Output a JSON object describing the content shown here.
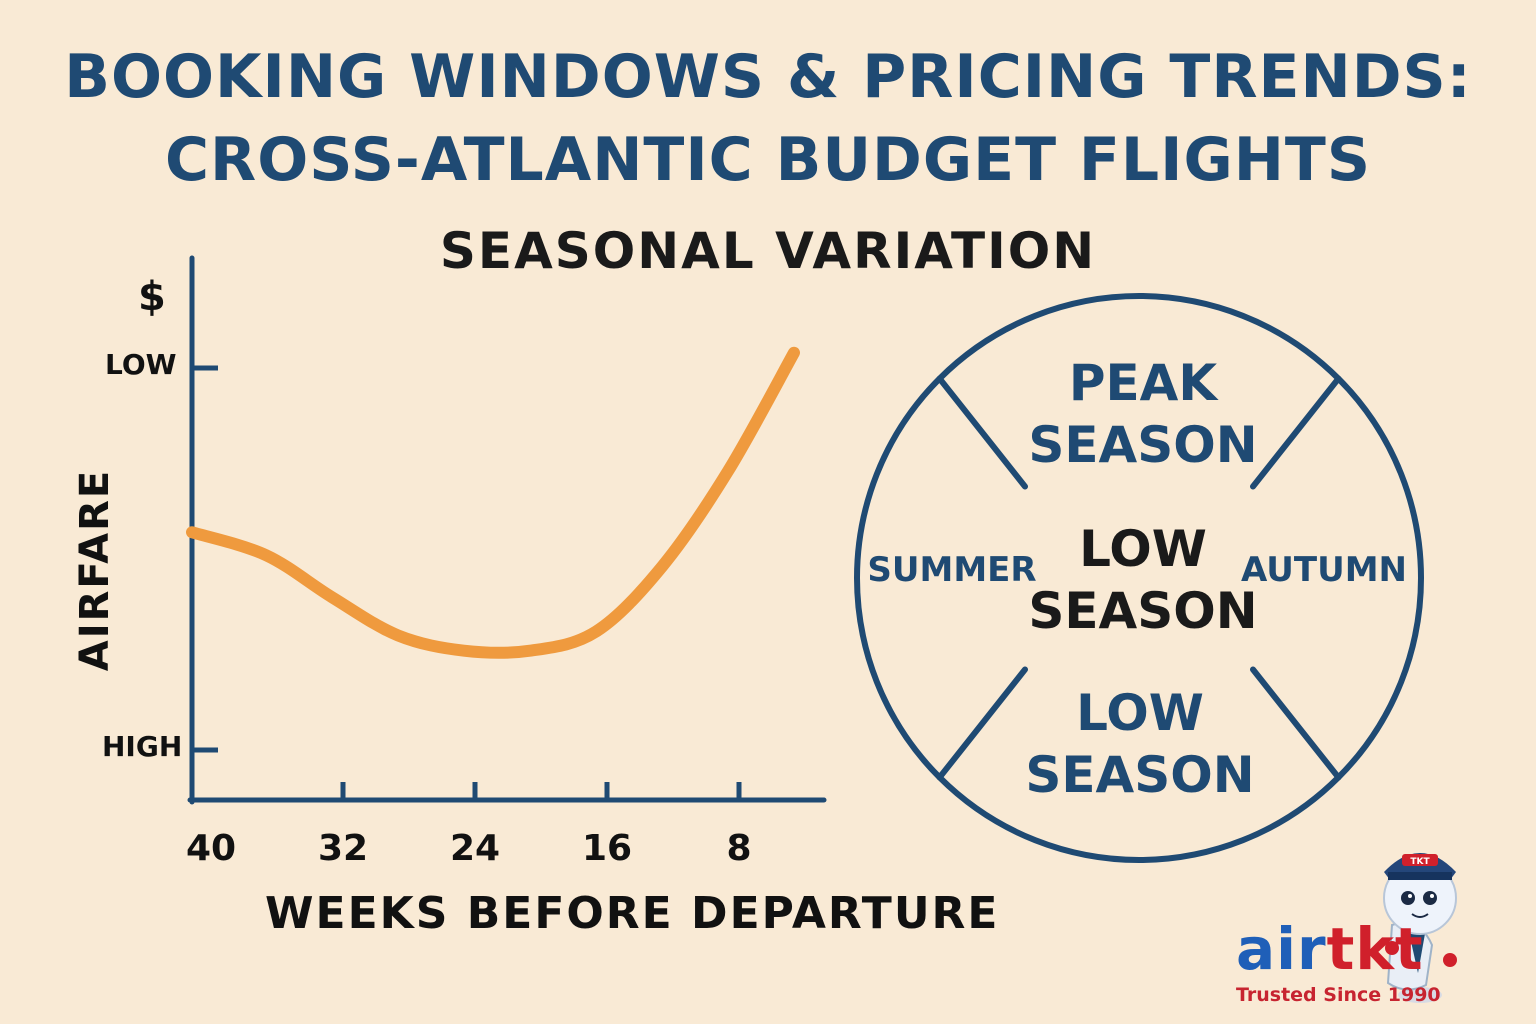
{
  "title_line1": "BOOKING WINDOWS & PRICING TRENDS:",
  "title_line2": "CROSS-ATLANTIC BUDGET FLIGHTS",
  "subtitle": "SEASONAL VARIATION",
  "chart_data": {
    "type": "line",
    "ylabel": "AIRFARE",
    "xlabel": "WEEKS BEFORE DEPARTURE",
    "y_unit_symbol": "$",
    "y_ticks": [
      "LOW",
      "HIGH"
    ],
    "x_ticks": [
      40,
      32,
      24,
      16,
      8
    ],
    "x_reversed": true,
    "series": [
      {
        "color": "#ef9a3e",
        "points": [
          [
            40,
            0.57
          ],
          [
            36,
            0.51
          ],
          [
            32,
            0.4
          ],
          [
            28,
            0.3
          ],
          [
            24,
            0.26
          ],
          [
            20,
            0.26
          ],
          [
            16,
            0.31
          ],
          [
            12,
            0.48
          ],
          [
            8,
            0.73
          ],
          [
            4,
            1.04
          ]
        ]
      }
    ]
  },
  "season_wheel": {
    "top": [
      "PEAK",
      "SEASON"
    ],
    "center": [
      "LOW",
      "SEASON"
    ],
    "bottom": [
      "LOW",
      "SEASON"
    ],
    "left": "SUMMER",
    "right": "AUTUMN",
    "stroke_color": "#1f4a73"
  },
  "brand": {
    "name_part1": "air",
    "name_part2": "tkt",
    "tagline": "Trusted Since 1990",
    "badge_text": "TKT"
  },
  "colors": {
    "background": "#f9ead5",
    "title": "#1f4a73",
    "axis": "#1f4a73",
    "line": "#ef9a3e",
    "brand_blue": "#1f5fb8",
    "brand_red": "#d0202b"
  }
}
